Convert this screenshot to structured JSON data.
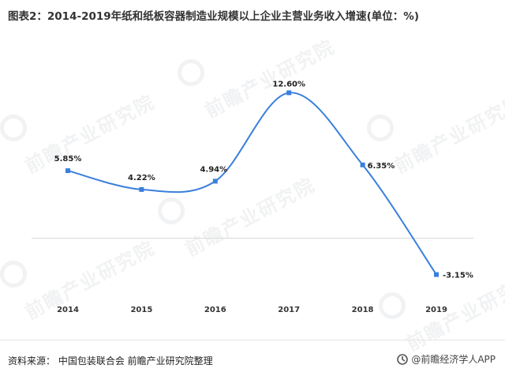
{
  "header": {
    "title": "图表2：2014-2019年纸和纸板容器制造业规模以上企业主营业务收入增速(单位：%)"
  },
  "footer": {
    "source": "资料来源：  中国包装联合会  前瞻产业研究院整理",
    "brand": "@前瞻经济学人APP"
  },
  "watermark": {
    "text": "前瞻产业研究院"
  },
  "colors": {
    "line": "#3a7fdc",
    "marker": "#3a7fdc",
    "zero_line": "#d9d9d9"
  },
  "chart_data": {
    "type": "line",
    "categories": [
      "2014",
      "2015",
      "2016",
      "2017",
      "2018",
      "2019"
    ],
    "values": [
      5.85,
      4.22,
      4.94,
      12.6,
      6.35,
      -3.15
    ],
    "data_labels": [
      "5.85%",
      "4.22%",
      "4.94%",
      "12.60%",
      "6.35%",
      "-3.15%"
    ],
    "title": "",
    "xlabel": "",
    "ylabel": "",
    "ylim": [
      -4,
      14
    ],
    "grid": false,
    "legend": "none",
    "smooth": true
  }
}
